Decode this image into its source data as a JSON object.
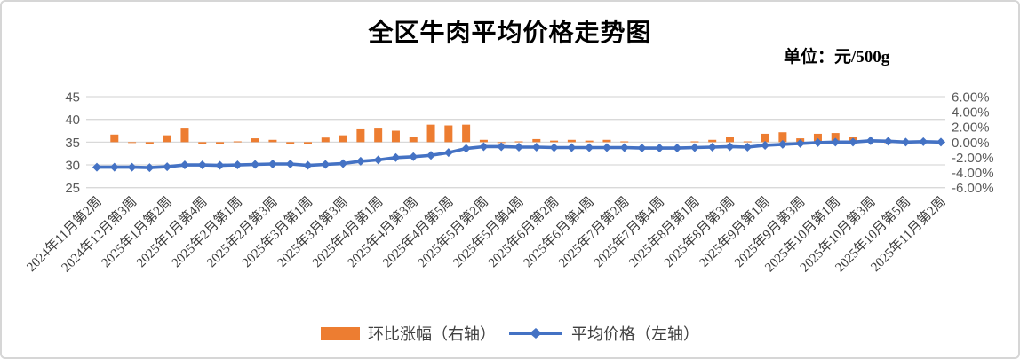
{
  "title": "全区牛肉平均价格走势图",
  "unit_label": "单位：元/500g",
  "legend": {
    "bar_label": "环比涨幅（右轴）",
    "line_label": "平均价格（左轴）"
  },
  "colors": {
    "bar": "#ED7D31",
    "line": "#4472C4",
    "grid": "#D9D9D9",
    "axis_text": "#595959",
    "x_label_text": "#3a3a3a"
  },
  "chart_data": {
    "type": "line+bar combo",
    "title": "全区牛肉平均价格走势图",
    "unit": "元/500g",
    "grid": "horizontal only",
    "legend_position": "bottom",
    "x_labels_rotation": 45,
    "x_label_interval": 2,
    "left_axis": {
      "title": "平均价格",
      "ticks": [
        45,
        40,
        35,
        30,
        25
      ],
      "min": 25,
      "max": 45
    },
    "right_axis": {
      "title": "环比涨幅",
      "ticks": [
        "6.00%",
        "4.00%",
        "2.00%",
        "0.00%",
        "-2.00%",
        "-4.00%",
        "-6.00%"
      ],
      "min": -6,
      "max": 6
    },
    "x_tick_labels": [
      "2024年11月第2周",
      "2024年12月第3周",
      "2025年1月第2周",
      "2025年1月第4周",
      "2025年2月第1周",
      "2025年2月第3周",
      "2025年3月第1周",
      "2025年3月第3周",
      "2025年4月第1周",
      "2025年4月第3周",
      "2025年4月第5周",
      "2025年5月第2周",
      "2025年5月第4周",
      "2025年6月第2周",
      "2025年6月第4周",
      "2025年7月第2周",
      "2025年7月第4周",
      "2025年8月第1周",
      "2025年8月第3周",
      "2025年9月第1周",
      "2025年9月第3周",
      "2025年10月第1周",
      "2025年10月第3周",
      "2025年10月第5周",
      "2025年11月第2周"
    ],
    "series": [
      {
        "name": "环比涨幅（右轴）",
        "type": "bar",
        "axis": "right",
        "unit": "%",
        "values": [
          null,
          1.0,
          -0.1,
          -0.3,
          0.9,
          1.9,
          -0.2,
          -0.3,
          0.1,
          0.5,
          0.3,
          -0.2,
          -0.3,
          0.6,
          0.9,
          1.8,
          1.9,
          1.5,
          0.7,
          2.3,
          2.2,
          2.3,
          0.3,
          -0.1,
          0.1,
          0.4,
          0.2,
          0.3,
          0.2,
          0.3,
          0.1,
          0.0,
          0.0,
          0.0,
          0.1,
          0.3,
          0.7,
          0.1,
          1.1,
          1.3,
          0.5,
          1.1,
          1.2,
          0.7,
          0.2,
          -0.1,
          -0.1,
          0.1,
          0.0
        ]
      },
      {
        "name": "平均价格（左轴）",
        "type": "line",
        "axis": "left",
        "unit": "元/500g",
        "values": [
          29.5,
          29.5,
          29.5,
          29.4,
          29.6,
          30.0,
          30.0,
          29.9,
          30.0,
          30.1,
          30.2,
          30.2,
          29.9,
          30.1,
          30.3,
          30.8,
          31.1,
          31.6,
          31.8,
          32.1,
          32.7,
          33.6,
          34.0,
          34.0,
          33.9,
          33.9,
          33.8,
          33.8,
          33.8,
          33.8,
          33.8,
          33.7,
          33.7,
          33.7,
          33.8,
          33.9,
          34.0,
          33.9,
          34.3,
          34.5,
          34.7,
          34.9,
          35.0,
          35.0,
          35.3,
          35.2,
          35.0,
          35.1,
          35.0
        ]
      }
    ]
  }
}
